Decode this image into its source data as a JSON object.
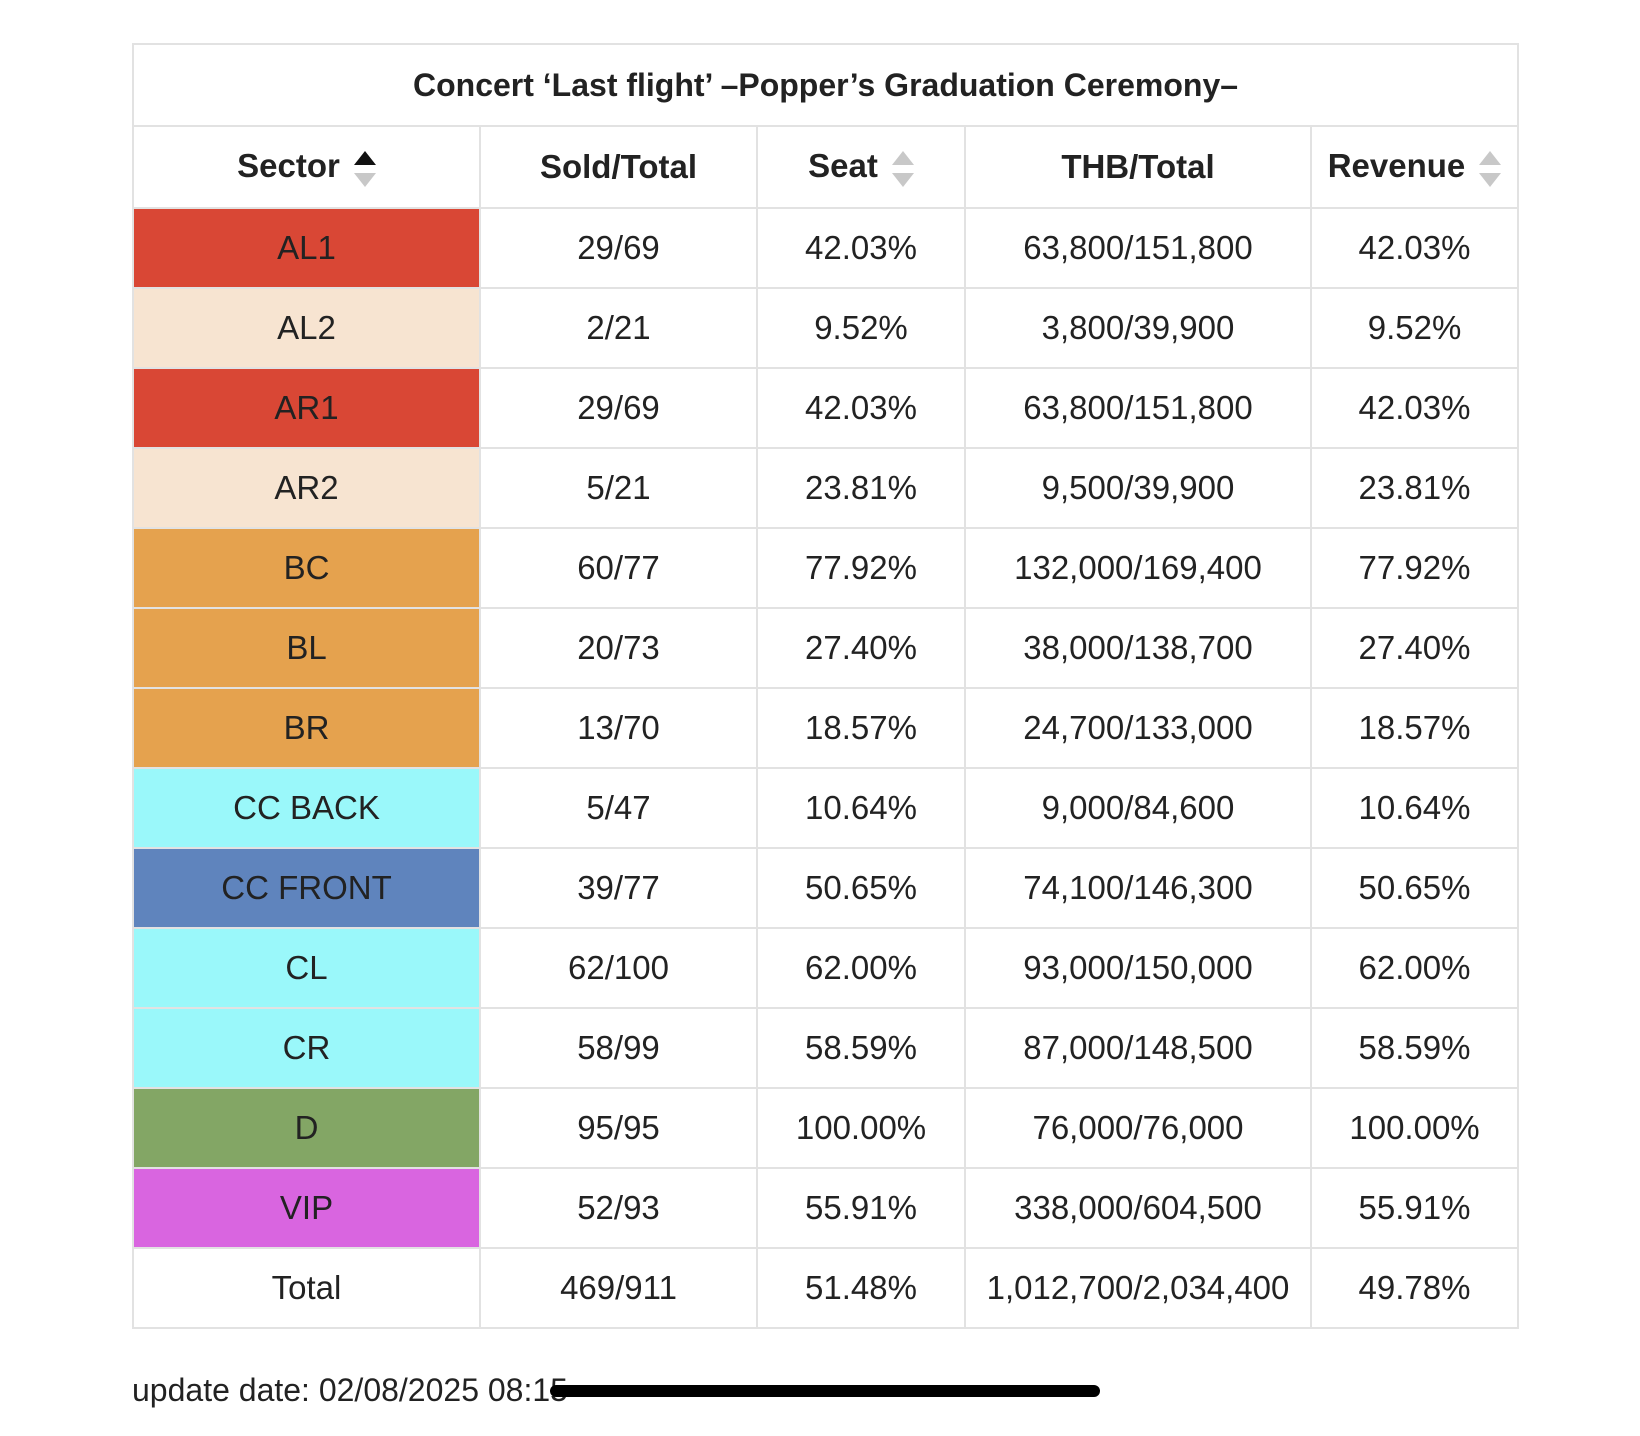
{
  "table": {
    "title": "Concert ‘Last flight’ –Popper’s Graduation Ceremony–",
    "headers": [
      {
        "label": "Sector",
        "sortable": true,
        "sort_active": true
      },
      {
        "label": "Sold/Total",
        "sortable": false,
        "sort_active": false
      },
      {
        "label": "Seat",
        "sortable": true,
        "sort_active": false
      },
      {
        "label": "THB/Total",
        "sortable": false,
        "sort_active": false
      },
      {
        "label": "Revenue",
        "sortable": true,
        "sort_active": false
      }
    ],
    "rows": [
      {
        "sector": "AL1",
        "color": "#d94735",
        "sold_total": "29/69",
        "seat": "42.03%",
        "thb_total": "63,800/151,800",
        "revenue": "42.03%"
      },
      {
        "sector": "AL2",
        "color": "#f7e4d1",
        "sold_total": "2/21",
        "seat": "9.52%",
        "thb_total": "3,800/39,900",
        "revenue": "9.52%"
      },
      {
        "sector": "AR1",
        "color": "#d94735",
        "sold_total": "29/69",
        "seat": "42.03%",
        "thb_total": "63,800/151,800",
        "revenue": "42.03%"
      },
      {
        "sector": "AR2",
        "color": "#f7e4d1",
        "sold_total": "5/21",
        "seat": "23.81%",
        "thb_total": "9,500/39,900",
        "revenue": "23.81%"
      },
      {
        "sector": "BC",
        "color": "#e5a24e",
        "sold_total": "60/77",
        "seat": "77.92%",
        "thb_total": "132,000/169,400",
        "revenue": "77.92%"
      },
      {
        "sector": "BL",
        "color": "#e5a24e",
        "sold_total": "20/73",
        "seat": "27.40%",
        "thb_total": "38,000/138,700",
        "revenue": "27.40%"
      },
      {
        "sector": "BR",
        "color": "#e5a24e",
        "sold_total": "13/70",
        "seat": "18.57%",
        "thb_total": "24,700/133,000",
        "revenue": "18.57%"
      },
      {
        "sector": "CC BACK",
        "color": "#9af8fa",
        "sold_total": "5/47",
        "seat": "10.64%",
        "thb_total": "9,000/84,600",
        "revenue": "10.64%"
      },
      {
        "sector": "CC FRONT",
        "color": "#5f84bd",
        "sold_total": "39/77",
        "seat": "50.65%",
        "thb_total": "74,100/146,300",
        "revenue": "50.65%"
      },
      {
        "sector": "CL",
        "color": "#9af8fa",
        "sold_total": "62/100",
        "seat": "62.00%",
        "thb_total": "93,000/150,000",
        "revenue": "62.00%"
      },
      {
        "sector": "CR",
        "color": "#9af8fa",
        "sold_total": "58/99",
        "seat": "58.59%",
        "thb_total": "87,000/148,500",
        "revenue": "58.59%"
      },
      {
        "sector": "D",
        "color": "#83a665",
        "sold_total": "95/95",
        "seat": "100.00%",
        "thb_total": "76,000/76,000",
        "revenue": "100.00%"
      },
      {
        "sector": "VIP",
        "color": "#d965e0",
        "sold_total": "52/93",
        "seat": "55.91%",
        "thb_total": "338,000/604,500",
        "revenue": "55.91%"
      }
    ],
    "total": {
      "sector": "Total",
      "sold_total": "469/911",
      "seat": "51.48%",
      "thb_total": "1,012,700/2,034,400",
      "revenue": "49.78%"
    }
  },
  "footer": {
    "update_text": "update date: 02/08/2025 08:15"
  }
}
